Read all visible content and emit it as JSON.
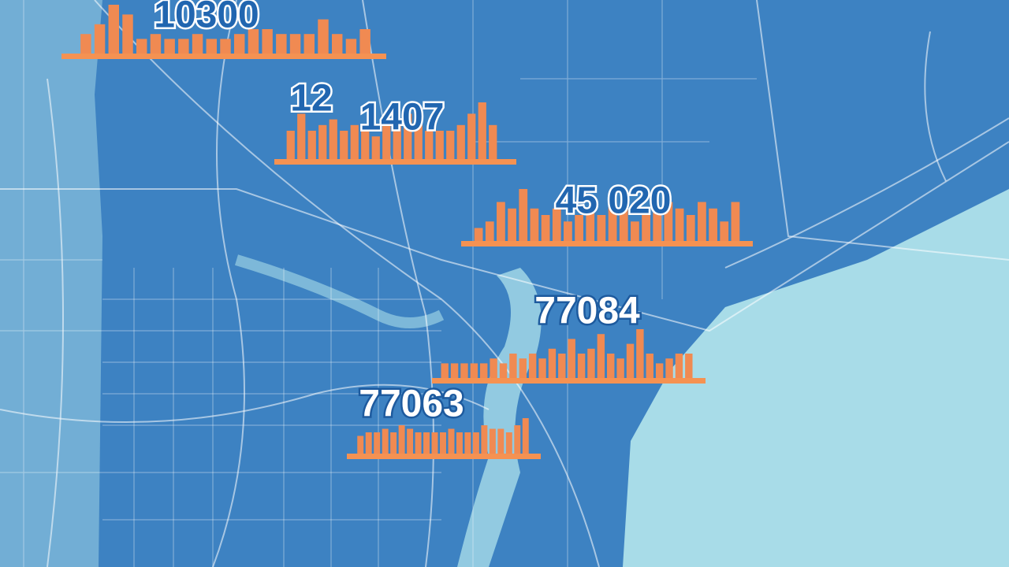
{
  "charts": [
    {
      "label": "10300",
      "values": [
        4,
        6,
        10,
        8,
        3,
        4,
        3,
        3,
        4,
        3,
        3,
        4,
        5,
        5,
        4,
        4,
        4,
        7,
        4,
        3,
        5
      ]
    },
    {
      "label": "12",
      "sublabel": "1407",
      "values": [
        5,
        8,
        5,
        6,
        7,
        5,
        6,
        5,
        4,
        6,
        6,
        8,
        7,
        5,
        5,
        5,
        6,
        8,
        10,
        6
      ]
    },
    {
      "label": "45 020",
      "values": [
        2,
        3,
        6,
        5,
        8,
        5,
        4,
        5,
        3,
        4,
        5,
        4,
        6,
        5,
        3,
        4,
        5,
        6,
        5,
        4,
        6,
        5,
        3,
        6
      ]
    },
    {
      "label": "77084",
      "values": [
        3,
        3,
        3,
        3,
        3,
        4,
        3,
        5,
        4,
        5,
        4,
        6,
        5,
        8,
        5,
        6,
        9,
        5,
        4,
        7,
        10,
        5,
        3,
        4,
        5,
        5
      ]
    },
    {
      "label": "77063",
      "values": [
        5,
        6,
        6,
        7,
        6,
        8,
        7,
        6,
        6,
        6,
        6,
        7,
        6,
        6,
        6,
        8,
        7,
        7,
        6,
        8,
        10
      ]
    }
  ]
}
